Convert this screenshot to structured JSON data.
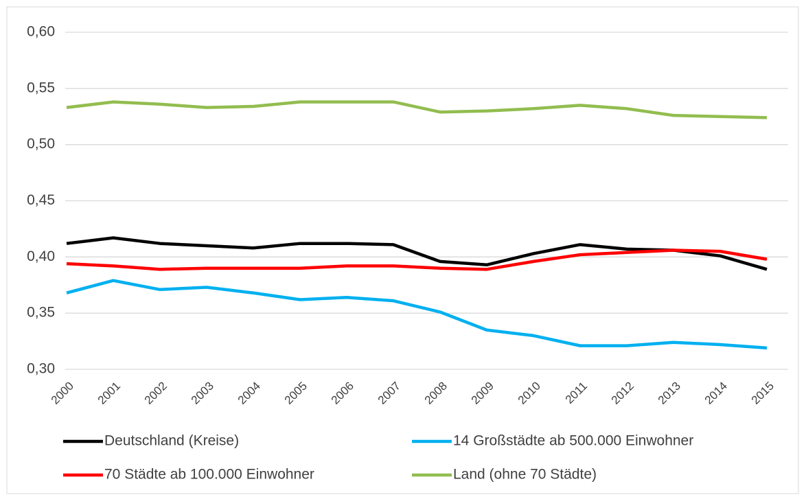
{
  "chart_data": {
    "type": "line",
    "categories": [
      "2000",
      "2001",
      "2002",
      "2003",
      "2004",
      "2005",
      "2006",
      "2007",
      "2008",
      "2009",
      "2010",
      "2011",
      "2012",
      "2013",
      "2014",
      "2015"
    ],
    "series": [
      {
        "name": "Deutschland (Kreise)",
        "color": "#000000",
        "values": [
          0.412,
          0.417,
          0.412,
          0.41,
          0.408,
          0.412,
          0.412,
          0.411,
          0.396,
          0.393,
          0.403,
          0.411,
          0.407,
          0.406,
          0.401,
          0.389
        ]
      },
      {
        "name": "14 Großstädte ab 500.000 Einwohner",
        "color": "#00b0f0",
        "values": [
          0.368,
          0.379,
          0.371,
          0.373,
          0.368,
          0.362,
          0.364,
          0.361,
          0.351,
          0.335,
          0.33,
          0.321,
          0.321,
          0.324,
          0.322,
          0.319
        ]
      },
      {
        "name": "70 Städte ab 100.000 Einwohner",
        "color": "#ff0000",
        "values": [
          0.394,
          0.392,
          0.389,
          0.39,
          0.39,
          0.39,
          0.392,
          0.392,
          0.39,
          0.389,
          0.396,
          0.402,
          0.404,
          0.406,
          0.405,
          0.398
        ]
      },
      {
        "name": "Land (ohne 70 Städte)",
        "color": "#92bd4f",
        "values": [
          0.533,
          0.538,
          0.536,
          0.533,
          0.534,
          0.538,
          0.538,
          0.538,
          0.529,
          0.53,
          0.532,
          0.535,
          0.532,
          0.526,
          0.525,
          0.524
        ]
      }
    ],
    "ylim": [
      0.3,
      0.6
    ],
    "yticks": [
      {
        "value": 0.3,
        "label": "0,30"
      },
      {
        "value": 0.35,
        "label": "0,35"
      },
      {
        "value": 0.4,
        "label": "0,40"
      },
      {
        "value": 0.45,
        "label": "0,45"
      },
      {
        "value": 0.5,
        "label": "0,50"
      },
      {
        "value": 0.55,
        "label": "0,55"
      },
      {
        "value": 0.6,
        "label": "0,60"
      }
    ],
    "grid": true,
    "legend": "bottom"
  }
}
